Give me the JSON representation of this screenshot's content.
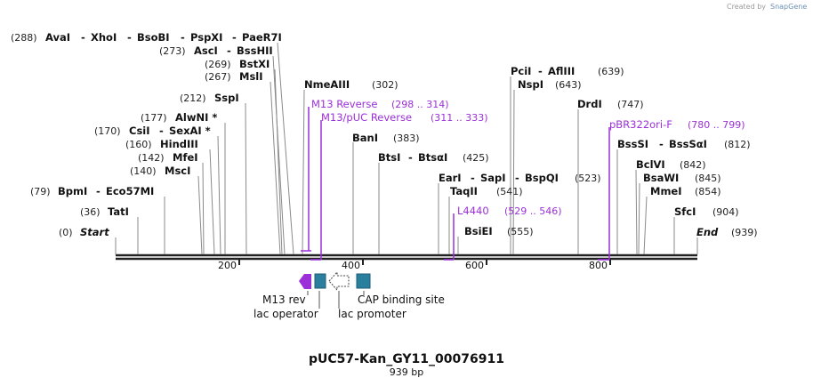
{
  "credit": "Created by",
  "brand": "SnapGene",
  "title": "pUC57-Kan_GY11_00076911",
  "length_label": "939 bp",
  "colors": {
    "primer": "#9b30d9",
    "feature": "#2a7f9e",
    "promoter": "#ffffff",
    "m13rev": "#9b30d9",
    "backbone": "#222222"
  },
  "axis_ticks": [
    "200",
    "400",
    "600",
    "800"
  ],
  "labels": {
    "L0a": {
      "pos": "(288)",
      "enzymes": [
        "AvaI",
        "XhoI",
        "BsoBI",
        "PspXI",
        "PaeR7I"
      ]
    },
    "L1a": {
      "pos": "(273)",
      "enzymes": [
        "AscI",
        "BssHII"
      ]
    },
    "L2a": {
      "pos": "(269)",
      "enzymes": [
        "BstXI"
      ]
    },
    "L3a": {
      "pos": "(267)",
      "enzymes": [
        "MslI"
      ]
    },
    "L4a": {
      "pos": "(212)",
      "enzymes": [
        "SspI"
      ]
    },
    "L5a": {
      "pos": "(177)",
      "enzymes": [
        "AlwNI *"
      ]
    },
    "L6a": {
      "pos": "(170)",
      "enzymes": [
        "CsiI",
        "SexAI *"
      ]
    },
    "L7a": {
      "pos": "(160)",
      "enzymes": [
        "HindIII"
      ]
    },
    "L8a": {
      "pos": "(142)",
      "enzymes": [
        "MfeI"
      ]
    },
    "L9a": {
      "pos": "(140)",
      "enzymes": [
        "MscI"
      ]
    },
    "L10a": {
      "pos": "(79)",
      "enzymes": [
        "BpmI",
        "Eco57MI"
      ]
    },
    "L11a": {
      "pos": "(36)",
      "enzymes": [
        "TatI"
      ]
    },
    "L12a": {
      "pos": "(0)",
      "enzymes": [
        "Start"
      ]
    },
    "R0": {
      "pos": "(302)",
      "enzymes": [
        "NmeAIII"
      ]
    },
    "R1": {
      "pos": "(383)",
      "enzymes": [
        "BanI"
      ]
    },
    "R2": {
      "pos": "(425)",
      "enzymes": [
        "BtsI",
        "BtsαI"
      ]
    },
    "R3": {
      "pos": "(523)",
      "enzymes": [
        "EarI",
        "SapI",
        "BspQI"
      ]
    },
    "R4": {
      "pos": "(541)",
      "enzymes": [
        "TaqII"
      ]
    },
    "R5": {
      "pos": "(555)",
      "enzymes": [
        "BsiEI"
      ]
    },
    "R6": {
      "pos": "(639)",
      "enzymes": [
        "PciI",
        "AflIII"
      ]
    },
    "R7": {
      "pos": "(643)",
      "enzymes": [
        "NspI"
      ]
    },
    "R8": {
      "pos": "(747)",
      "enzymes": [
        "DrdI"
      ]
    },
    "R9": {
      "pos": "(812)",
      "enzymes": [
        "BssSI",
        "BssSαI"
      ]
    },
    "R10": {
      "pos": "(842)",
      "enzymes": [
        "BclVI"
      ]
    },
    "R11": {
      "pos": "(845)",
      "enzymes": [
        "BsaWI"
      ]
    },
    "R12": {
      "pos": "(854)",
      "enzymes": [
        "MmeI"
      ]
    },
    "R13": {
      "pos": "(904)",
      "enzymes": [
        "SfcI"
      ]
    },
    "R14": {
      "pos": "(939)",
      "enzymes": [
        "End"
      ]
    }
  },
  "primers": [
    {
      "name": "M13 Reverse",
      "range": "(298 .. 314)"
    },
    {
      "name": "M13/pUC Reverse",
      "range": "(311 .. 333)"
    },
    {
      "name": "L4440",
      "range": "(529 .. 546)"
    },
    {
      "name": "pBR322ori-F",
      "range": "(780 .. 799)"
    }
  ],
  "features": [
    "M13 rev",
    "lac operator",
    "lac promoter",
    "CAP binding site"
  ]
}
